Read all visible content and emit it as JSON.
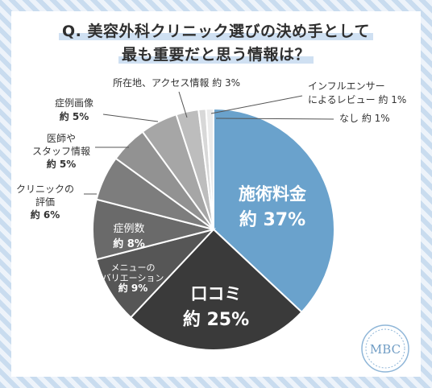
{
  "title_line1": "Q. 美容外科クリニック選びの決め手として",
  "title_line2": "最も重要だと思う情報は？",
  "logo_text": "MBC",
  "colors": {
    "primary": "#6aa2cc",
    "kuchikomi": "#3a3a3a",
    "variation": "#565656",
    "cases": "#6a6a6a",
    "clinic_eval": "#7d7d7d",
    "staff": "#929292",
    "case_images": "#a6a6a6",
    "access": "#bdbdbd",
    "influencer": "#d8d8d8",
    "none": "#ebebeb",
    "separator": "#ffffff"
  },
  "chart_data": {
    "type": "pie",
    "title": "Q. 美容外科クリニック選びの決め手として最も重要だと思う情報は？",
    "start": "12 o'clock, clockwise",
    "slices": [
      {
        "key": "price",
        "lines": [
          "施術料金"
        ],
        "value_text": "約 37%",
        "value": 37,
        "color": "#6aa2cc"
      },
      {
        "key": "kuchikomi",
        "lines": [
          "口コミ"
        ],
        "value_text": "約 25%",
        "value": 25,
        "color": "#3a3a3a"
      },
      {
        "key": "variation",
        "lines": [
          "メニューの",
          "バリエーション"
        ],
        "value_text": "約 9%",
        "value": 9,
        "color": "#565656"
      },
      {
        "key": "cases",
        "lines": [
          "症例数"
        ],
        "value_text": "約 8%",
        "value": 8,
        "color": "#6a6a6a"
      },
      {
        "key": "clinic_eval",
        "lines": [
          "クリニックの",
          "評価"
        ],
        "value_text": "約 6%",
        "value": 6,
        "color": "#7d7d7d"
      },
      {
        "key": "staff",
        "lines": [
          "医師や",
          "スタッフ情報"
        ],
        "value_text": "約 5%",
        "value": 5,
        "color": "#929292"
      },
      {
        "key": "case_images",
        "lines": [
          "症例画像"
        ],
        "value_text": "約 5%",
        "value": 5,
        "color": "#a6a6a6"
      },
      {
        "key": "access",
        "lines": [
          "所在地、アクセス情報"
        ],
        "value_text": "約 3%",
        "value": 3,
        "color": "#bdbdbd"
      },
      {
        "key": "influencer",
        "lines": [
          "インフルエンサー",
          "によるレビュー"
        ],
        "value_text": "約 1%",
        "value": 1,
        "color": "#d8d8d8"
      },
      {
        "key": "none",
        "lines": [
          "なし"
        ],
        "value_text": "約 1%",
        "value": 1,
        "color": "#ebebeb"
      }
    ]
  }
}
